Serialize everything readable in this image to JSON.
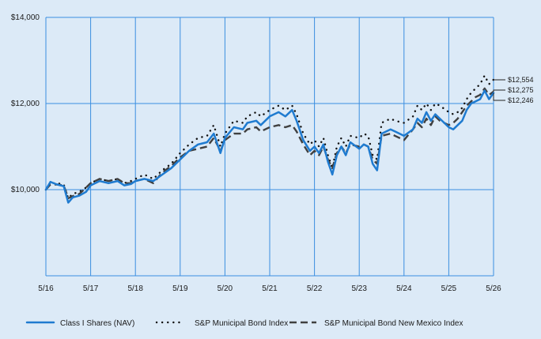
{
  "chart_data": {
    "type": "line",
    "title": "",
    "xlabel": "",
    "ylabel": "",
    "x_ticks": [
      "5/16",
      "5/17",
      "5/18",
      "5/19",
      "5/20",
      "5/21",
      "5/22",
      "5/23",
      "5/24",
      "5/25",
      "5/26"
    ],
    "y_ticks": [
      {
        "value": 10000,
        "label": "$10,000"
      },
      {
        "value": 12000,
        "label": "$12,000"
      },
      {
        "value": 14000,
        "label": "$14,000"
      }
    ],
    "ylim": [
      8000,
      14000
    ],
    "xlim": [
      0,
      10
    ],
    "grid": true,
    "legend_position": "bottom",
    "series": [
      {
        "name": "Class I Shares (NAV)",
        "color": "#1f7bd0",
        "style": "solid",
        "end_label": "$12,246",
        "points": [
          [
            0.0,
            10000
          ],
          [
            0.1,
            10180
          ],
          [
            0.25,
            10120
          ],
          [
            0.4,
            10080
          ],
          [
            0.5,
            9700
          ],
          [
            0.6,
            9820
          ],
          [
            0.75,
            9860
          ],
          [
            0.9,
            9950
          ],
          [
            1.0,
            10100
          ],
          [
            1.2,
            10200
          ],
          [
            1.4,
            10150
          ],
          [
            1.6,
            10200
          ],
          [
            1.75,
            10100
          ],
          [
            1.9,
            10130
          ],
          [
            2.0,
            10200
          ],
          [
            2.2,
            10250
          ],
          [
            2.4,
            10200
          ],
          [
            2.6,
            10350
          ],
          [
            2.8,
            10500
          ],
          [
            3.0,
            10700
          ],
          [
            3.2,
            10900
          ],
          [
            3.4,
            11050
          ],
          [
            3.6,
            11100
          ],
          [
            3.75,
            11300
          ],
          [
            3.9,
            10850
          ],
          [
            4.0,
            11200
          ],
          [
            4.2,
            11450
          ],
          [
            4.4,
            11400
          ],
          [
            4.5,
            11550
          ],
          [
            4.7,
            11600
          ],
          [
            4.8,
            11500
          ],
          [
            5.0,
            11700
          ],
          [
            5.2,
            11800
          ],
          [
            5.35,
            11700
          ],
          [
            5.5,
            11850
          ],
          [
            5.6,
            11600
          ],
          [
            5.75,
            11150
          ],
          [
            5.9,
            10900
          ],
          [
            6.0,
            11000
          ],
          [
            6.1,
            10850
          ],
          [
            6.2,
            11050
          ],
          [
            6.3,
            10650
          ],
          [
            6.4,
            10350
          ],
          [
            6.5,
            10800
          ],
          [
            6.6,
            11000
          ],
          [
            6.7,
            10800
          ],
          [
            6.8,
            11100
          ],
          [
            7.0,
            10950
          ],
          [
            7.1,
            11050
          ],
          [
            7.2,
            11000
          ],
          [
            7.3,
            10600
          ],
          [
            7.4,
            10450
          ],
          [
            7.5,
            11300
          ],
          [
            7.7,
            11400
          ],
          [
            7.8,
            11350
          ],
          [
            8.0,
            11250
          ],
          [
            8.2,
            11400
          ],
          [
            8.3,
            11650
          ],
          [
            8.4,
            11550
          ],
          [
            8.5,
            11800
          ],
          [
            8.6,
            11600
          ],
          [
            8.7,
            11750
          ],
          [
            8.8,
            11650
          ],
          [
            9.0,
            11450
          ],
          [
            9.1,
            11400
          ],
          [
            9.2,
            11500
          ],
          [
            9.3,
            11600
          ],
          [
            9.4,
            11850
          ],
          [
            9.5,
            12000
          ],
          [
            9.6,
            12050
          ],
          [
            9.7,
            12100
          ],
          [
            9.8,
            12300
          ],
          [
            9.9,
            12100
          ],
          [
            10.0,
            12246
          ]
        ]
      },
      {
        "name": "S&P Municipal Bond Index",
        "color": "#111111",
        "style": "dotted",
        "end_label": "$12,554",
        "points": [
          [
            0.0,
            10000
          ],
          [
            0.1,
            10150
          ],
          [
            0.25,
            10150
          ],
          [
            0.4,
            10120
          ],
          [
            0.5,
            9800
          ],
          [
            0.6,
            9900
          ],
          [
            0.75,
            9950
          ],
          [
            0.9,
            10050
          ],
          [
            1.0,
            10150
          ],
          [
            1.2,
            10250
          ],
          [
            1.4,
            10200
          ],
          [
            1.6,
            10250
          ],
          [
            1.75,
            10150
          ],
          [
            1.9,
            10200
          ],
          [
            2.0,
            10250
          ],
          [
            2.2,
            10350
          ],
          [
            2.4,
            10250
          ],
          [
            2.6,
            10450
          ],
          [
            2.8,
            10600
          ],
          [
            3.0,
            10850
          ],
          [
            3.2,
            11050
          ],
          [
            3.4,
            11200
          ],
          [
            3.6,
            11250
          ],
          [
            3.75,
            11500
          ],
          [
            3.9,
            11000
          ],
          [
            4.0,
            11300
          ],
          [
            4.2,
            11600
          ],
          [
            4.4,
            11550
          ],
          [
            4.5,
            11700
          ],
          [
            4.7,
            11800
          ],
          [
            4.8,
            11700
          ],
          [
            5.0,
            11850
          ],
          [
            5.2,
            11950
          ],
          [
            5.35,
            11850
          ],
          [
            5.5,
            11950
          ],
          [
            5.6,
            11750
          ],
          [
            5.75,
            11300
          ],
          [
            5.9,
            11050
          ],
          [
            6.0,
            11150
          ],
          [
            6.1,
            11000
          ],
          [
            6.2,
            11200
          ],
          [
            6.3,
            10800
          ],
          [
            6.4,
            10500
          ],
          [
            6.5,
            11000
          ],
          [
            6.6,
            11200
          ],
          [
            6.7,
            11000
          ],
          [
            6.8,
            11250
          ],
          [
            7.0,
            11200
          ],
          [
            7.1,
            11300
          ],
          [
            7.2,
            11250
          ],
          [
            7.3,
            10800
          ],
          [
            7.4,
            10700
          ],
          [
            7.5,
            11550
          ],
          [
            7.7,
            11650
          ],
          [
            7.8,
            11600
          ],
          [
            8.0,
            11550
          ],
          [
            8.2,
            11700
          ],
          [
            8.3,
            11950
          ],
          [
            8.4,
            11850
          ],
          [
            8.5,
            12000
          ],
          [
            8.6,
            11850
          ],
          [
            8.7,
            12000
          ],
          [
            8.8,
            11950
          ],
          [
            9.0,
            11800
          ],
          [
            9.1,
            11750
          ],
          [
            9.2,
            11800
          ],
          [
            9.3,
            11900
          ],
          [
            9.4,
            12100
          ],
          [
            9.5,
            12250
          ],
          [
            9.6,
            12350
          ],
          [
            9.7,
            12450
          ],
          [
            9.8,
            12650
          ],
          [
            9.9,
            12450
          ],
          [
            10.0,
            12554
          ]
        ]
      },
      {
        "name": "S&P Municipal Bond New Mexico Index",
        "color": "#404040",
        "style": "dashed",
        "end_label": "$12,275",
        "points": [
          [
            0.0,
            10000
          ],
          [
            0.1,
            10120
          ],
          [
            0.25,
            10120
          ],
          [
            0.4,
            10100
          ],
          [
            0.5,
            9800
          ],
          [
            0.6,
            9850
          ],
          [
            0.75,
            9900
          ],
          [
            0.9,
            10050
          ],
          [
            1.0,
            10150
          ],
          [
            1.2,
            10250
          ],
          [
            1.4,
            10200
          ],
          [
            1.6,
            10250
          ],
          [
            1.75,
            10150
          ],
          [
            1.9,
            10150
          ],
          [
            2.0,
            10200
          ],
          [
            2.2,
            10250
          ],
          [
            2.4,
            10150
          ],
          [
            2.6,
            10400
          ],
          [
            2.8,
            10550
          ],
          [
            3.0,
            10750
          ],
          [
            3.2,
            10900
          ],
          [
            3.4,
            10950
          ],
          [
            3.6,
            11000
          ],
          [
            3.75,
            11200
          ],
          [
            3.9,
            10900
          ],
          [
            4.0,
            11150
          ],
          [
            4.2,
            11300
          ],
          [
            4.4,
            11300
          ],
          [
            4.5,
            11400
          ],
          [
            4.7,
            11450
          ],
          [
            4.8,
            11350
          ],
          [
            5.0,
            11450
          ],
          [
            5.2,
            11500
          ],
          [
            5.35,
            11450
          ],
          [
            5.5,
            11500
          ],
          [
            5.6,
            11350
          ],
          [
            5.75,
            11050
          ],
          [
            5.9,
            10800
          ],
          [
            6.0,
            10900
          ],
          [
            6.1,
            10800
          ],
          [
            6.2,
            11000
          ],
          [
            6.3,
            10700
          ],
          [
            6.4,
            10500
          ],
          [
            6.5,
            10850
          ],
          [
            6.6,
            11000
          ],
          [
            6.7,
            10850
          ],
          [
            6.8,
            11050
          ],
          [
            7.0,
            11000
          ],
          [
            7.1,
            11050
          ],
          [
            7.2,
            11000
          ],
          [
            7.3,
            10700
          ],
          [
            7.4,
            10600
          ],
          [
            7.5,
            11250
          ],
          [
            7.7,
            11300
          ],
          [
            7.8,
            11250
          ],
          [
            8.0,
            11150
          ],
          [
            8.2,
            11400
          ],
          [
            8.3,
            11550
          ],
          [
            8.4,
            11450
          ],
          [
            8.5,
            11650
          ],
          [
            8.6,
            11500
          ],
          [
            8.7,
            11700
          ],
          [
            8.8,
            11600
          ],
          [
            9.0,
            11500
          ],
          [
            9.1,
            11550
          ],
          [
            9.2,
            11650
          ],
          [
            9.3,
            11800
          ],
          [
            9.4,
            11950
          ],
          [
            9.5,
            12050
          ],
          [
            9.6,
            12150
          ],
          [
            9.7,
            12200
          ],
          [
            9.8,
            12350
          ],
          [
            9.9,
            12200
          ],
          [
            10.0,
            12275
          ]
        ]
      }
    ]
  }
}
